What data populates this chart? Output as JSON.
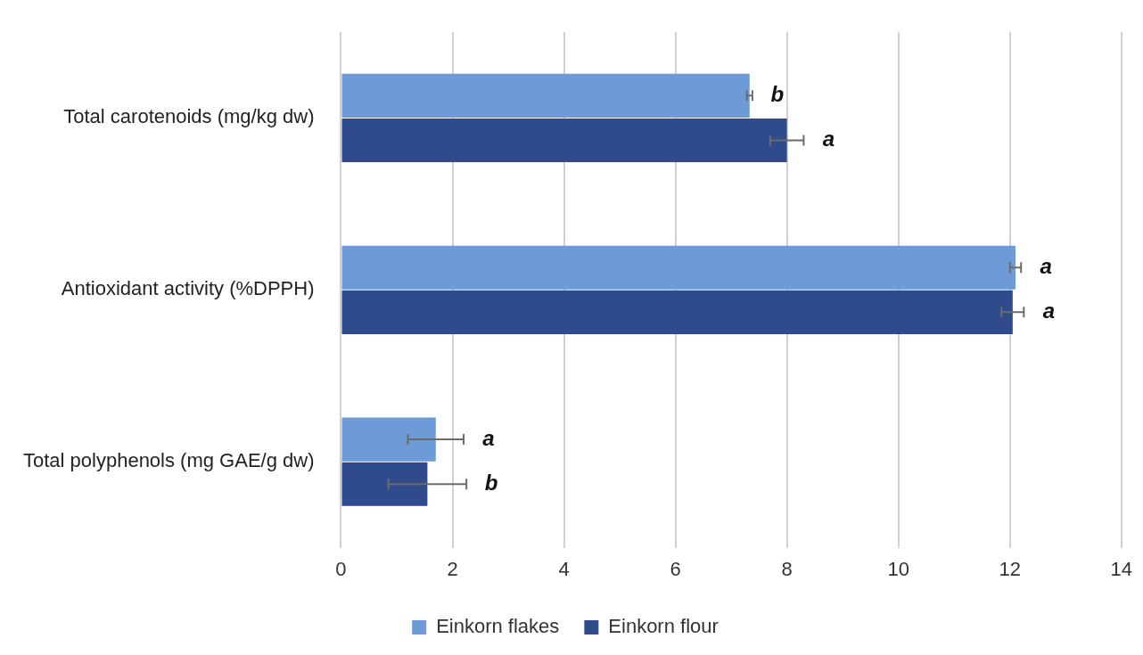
{
  "chart_data": {
    "type": "bar",
    "orientation": "horizontal",
    "categories": [
      "Total carotenoids (mg/kg dw)",
      "Antioxidant activity (%DPPH)",
      "Total polyphenols (mg GAE/g dw)"
    ],
    "series": [
      {
        "name": "Einkorn flakes",
        "color": "#6d9bd8",
        "values": [
          7.33,
          12.1,
          1.7
        ],
        "errors": [
          0.05,
          0.1,
          0.5
        ]
      },
      {
        "name": "Einkorn flour",
        "color": "#2f4b8c",
        "values": [
          8.0,
          12.05,
          1.55
        ],
        "errors": [
          0.3,
          0.2,
          0.7
        ]
      }
    ],
    "xlim": [
      0,
      14
    ],
    "xticks": [
      0,
      2,
      4,
      6,
      8,
      10,
      12,
      14
    ],
    "grid": "x",
    "legend": "bottom",
    "annotations": [
      {
        "text": "b",
        "x": 7.33,
        "y": "Total carotenoids (mg/kg dw)"
      },
      {
        "text": "a",
        "x": 8.0,
        "y": "Total carotenoids (mg/kg dw)"
      },
      {
        "text": "a",
        "x": 12.1,
        "y": "Antioxidant activity (%DPPH)"
      },
      {
        "text": "a",
        "x": 12.05,
        "y": "Antioxidant activity (%DPPH)"
      },
      {
        "text": "a",
        "x": 1.7,
        "y": "Total polyphenols (mg GAE/g dw)"
      },
      {
        "text": "b",
        "x": 1.55,
        "y": "Total polyphenols (mg GAE/g dw)"
      }
    ]
  }
}
